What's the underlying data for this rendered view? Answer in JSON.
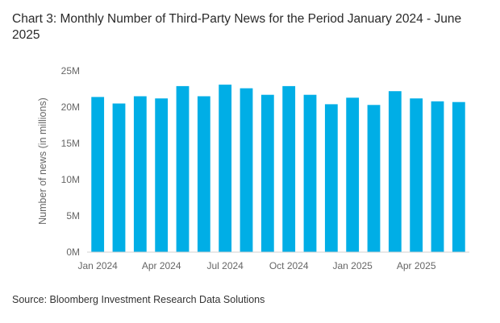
{
  "chart_data": {
    "type": "bar",
    "title": "Chart 3: Monthly Number of Third-Party News for the Period January 2024 - June 2025",
    "ylabel": "Number of news (in millions)",
    "xlabel": "",
    "ylim": [
      0,
      25
    ],
    "yticks": [
      {
        "value": 0,
        "label": "0M"
      },
      {
        "value": 5,
        "label": "5M"
      },
      {
        "value": 10,
        "label": "10M"
      },
      {
        "value": 15,
        "label": "15M"
      },
      {
        "value": 20,
        "label": "20M"
      },
      {
        "value": 25,
        "label": "25M"
      }
    ],
    "categories": [
      "Jan 2024",
      "Feb 2024",
      "Mar 2024",
      "Apr 2024",
      "May 2024",
      "Jun 2024",
      "Jul 2024",
      "Aug 2024",
      "Sep 2024",
      "Oct 2024",
      "Nov 2024",
      "Dec 2024",
      "Jan 2025",
      "Feb 2025",
      "Mar 2025",
      "Apr 2025",
      "May 2025",
      "Jun 2025"
    ],
    "xtick_labels": [
      {
        "index": 0,
        "label": "Jan 2024"
      },
      {
        "index": 3,
        "label": "Apr 2024"
      },
      {
        "index": 6,
        "label": "Jul 2024"
      },
      {
        "index": 9,
        "label": "Oct 2024"
      },
      {
        "index": 12,
        "label": "Jan 2025"
      },
      {
        "index": 15,
        "label": "Apr 2025"
      }
    ],
    "values": [
      21.4,
      20.5,
      21.5,
      21.2,
      22.9,
      21.5,
      23.1,
      22.6,
      21.7,
      22.9,
      21.7,
      20.4,
      21.3,
      20.3,
      22.2,
      21.2,
      20.8,
      20.7
    ],
    "bar_color": "#00aee6",
    "grid": false
  },
  "source": "Source: Bloomberg Investment Research Data Solutions"
}
